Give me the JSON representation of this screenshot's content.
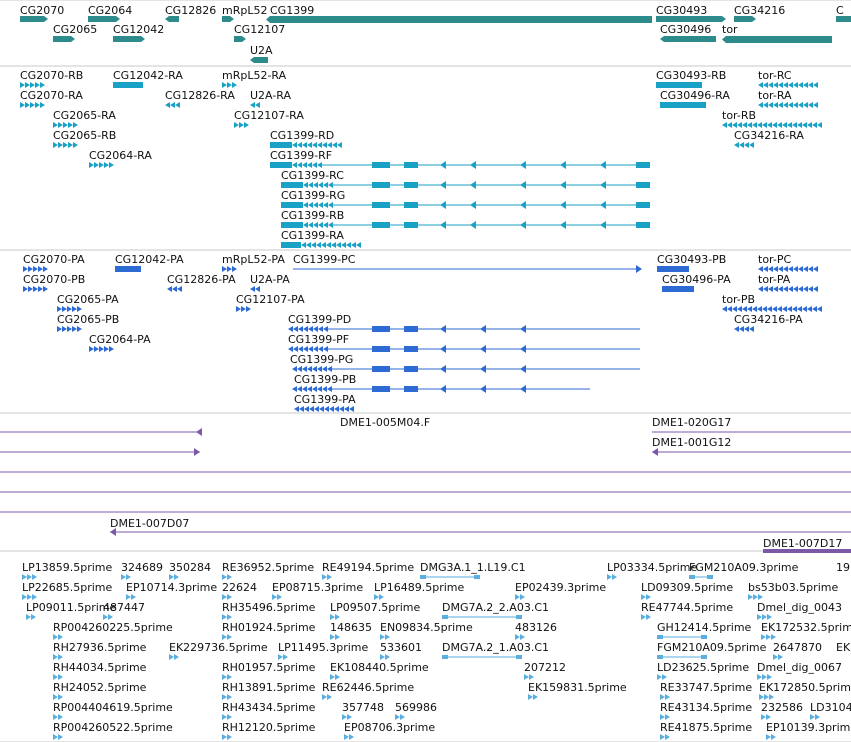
{
  "colors": {
    "track_gene": "#2e8b8b",
    "track_mrna": "#19a2c5",
    "track_protein": "#2e6ad4",
    "track_clone": "#7b58a8",
    "track_est": "#5aaee0",
    "separator": "#c8c8c8"
  },
  "tracks": {
    "genes": {
      "labels": [
        {
          "text": "CG2070"
        },
        {
          "text": "CG2064"
        },
        {
          "text": "CG12826"
        },
        {
          "text": "mRpL52"
        },
        {
          "text": "CG1399"
        },
        {
          "text": "CG30493"
        },
        {
          "text": "CG34216"
        },
        {
          "text": "C"
        },
        {
          "text": "CG2065"
        },
        {
          "text": "CG12042"
        },
        {
          "text": "CG12107"
        },
        {
          "text": "CG30496"
        },
        {
          "text": "tor"
        },
        {
          "text": "U2A"
        }
      ]
    },
    "transcripts": {
      "labels": [
        {
          "text": "CG2070-RB"
        },
        {
          "text": "CG12042-RA"
        },
        {
          "text": "mRpL52-RA"
        },
        {
          "text": "CG30493-RB"
        },
        {
          "text": "tor-RC"
        },
        {
          "text": "CG2070-RA"
        },
        {
          "text": "CG12826-RA"
        },
        {
          "text": "U2A-RA"
        },
        {
          "text": "CG30496-RA"
        },
        {
          "text": "tor-RA"
        },
        {
          "text": "CG2065-RA"
        },
        {
          "text": "CG12107-RA"
        },
        {
          "text": "tor-RB"
        },
        {
          "text": "CG2065-RB"
        },
        {
          "text": "CG1399-RD"
        },
        {
          "text": "CG34216-RA"
        },
        {
          "text": "CG2064-RA"
        },
        {
          "text": "CG1399-RF"
        },
        {
          "text": "CG1399-RC"
        },
        {
          "text": "CG1399-RG"
        },
        {
          "text": "CG1399-RB"
        },
        {
          "text": "CG1399-RA"
        }
      ]
    },
    "proteins": {
      "labels": [
        {
          "text": "CG2070-PA"
        },
        {
          "text": "CG12042-PA"
        },
        {
          "text": "mRpL52-PA"
        },
        {
          "text": "CG1399-PC"
        },
        {
          "text": "CG30493-PB"
        },
        {
          "text": "tor-PC"
        },
        {
          "text": "CG2070-PB"
        },
        {
          "text": "CG12826-PA"
        },
        {
          "text": "U2A-PA"
        },
        {
          "text": "CG30496-PA"
        },
        {
          "text": "tor-PA"
        },
        {
          "text": "CG2065-PA"
        },
        {
          "text": "CG12107-PA"
        },
        {
          "text": "tor-PB"
        },
        {
          "text": "CG2065-PB"
        },
        {
          "text": "CG1399-PD"
        },
        {
          "text": "CG34216-PA"
        },
        {
          "text": "CG2064-PA"
        },
        {
          "text": "CG1399-PF"
        },
        {
          "text": "CG1399-PG"
        },
        {
          "text": "CG1399-PB"
        },
        {
          "text": "CG1399-PA"
        }
      ]
    },
    "clones": {
      "labels": [
        {
          "text": "DME1-005M04.F"
        },
        {
          "text": "DME1-020G17"
        },
        {
          "text": "DME1-001G12"
        },
        {
          "text": "DME1-007D07"
        },
        {
          "text": "DME1-007D17"
        }
      ]
    },
    "ests": {
      "labels": [
        {
          "text": "LP13859.5prime"
        },
        {
          "text": "324689"
        },
        {
          "text": "350284"
        },
        {
          "text": "RE36952.5prime"
        },
        {
          "text": "RE49194.5prime"
        },
        {
          "text": "DMG3A.1_1.L19.C1"
        },
        {
          "text": "LP03334.5prime"
        },
        {
          "text": "FGM210A09.3prime"
        },
        {
          "text": "19"
        },
        {
          "text": "LP22685.5prime"
        },
        {
          "text": "EP10714.3prime"
        },
        {
          "text": "22624"
        },
        {
          "text": "EP08715.3prime"
        },
        {
          "text": "LP16489.5prime"
        },
        {
          "text": "EP02439.3prime"
        },
        {
          "text": "LD09309.5prime"
        },
        {
          "text": "bs53b03.5prime"
        },
        {
          "text": "LP09011.5prime"
        },
        {
          "text": "487447"
        },
        {
          "text": "RH35496.5prime"
        },
        {
          "text": "LP09507.5prime"
        },
        {
          "text": "DMG7A.2_2.A03.C1"
        },
        {
          "text": "RE47744.5prime"
        },
        {
          "text": "Dmel_dig_0043"
        },
        {
          "text": "RP004260225.5prime"
        },
        {
          "text": "RH01924.5prime"
        },
        {
          "text": "148635"
        },
        {
          "text": "EN09834.5prime"
        },
        {
          "text": "483126"
        },
        {
          "text": "GH12414.5prime"
        },
        {
          "text": "EK172532.5prime"
        },
        {
          "text": "RH27936.5prime"
        },
        {
          "text": "EK229736.5prime"
        },
        {
          "text": "LP11495.3prime"
        },
        {
          "text": "533601"
        },
        {
          "text": "DMG7A.2_1.A03.C1"
        },
        {
          "text": "FGM210A09.5prime"
        },
        {
          "text": "2647870"
        },
        {
          "text": "EK"
        },
        {
          "text": "RH44034.5prime"
        },
        {
          "text": "RH01957.5prime"
        },
        {
          "text": "EK108440.5prime"
        },
        {
          "text": "207212"
        },
        {
          "text": "LD23625.5prime"
        },
        {
          "text": "Dmel_dig_0067"
        },
        {
          "text": "RH24052.5prime"
        },
        {
          "text": "RH13891.5prime"
        },
        {
          "text": "RE62446.5prime"
        },
        {
          "text": "EK159831.5prime"
        },
        {
          "text": "RE33747.5prime"
        },
        {
          "text": "EK172850.5prime"
        },
        {
          "text": "RP004404619.5prime"
        },
        {
          "text": "RH43434.5prime"
        },
        {
          "text": "357748"
        },
        {
          "text": "569986"
        },
        {
          "text": "RE43134.5prime"
        },
        {
          "text": "232586"
        },
        {
          "text": "LD3104"
        },
        {
          "text": "RP004260522.5prime"
        },
        {
          "text": "RH12120.5prime"
        },
        {
          "text": "EP08706.3prime"
        },
        {
          "text": "RE41875.5prime"
        },
        {
          "text": "EP10139.3prime"
        }
      ]
    }
  }
}
